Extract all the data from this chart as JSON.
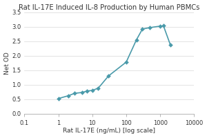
{
  "title": "Rat IL-17E Induced IL-8 Production by Human PBMCs",
  "xlabel": "Rat IL-17E (ng/mL) [log scale]",
  "ylabel": "Net OD",
  "x_data": [
    1,
    2,
    3,
    5,
    7,
    10,
    15,
    30,
    100,
    200,
    300,
    500,
    1000,
    1250,
    2000
  ],
  "y_data": [
    0.52,
    0.62,
    0.7,
    0.73,
    0.78,
    0.8,
    0.88,
    1.3,
    1.78,
    2.55,
    2.92,
    2.97,
    3.02,
    3.03,
    2.37
  ],
  "line_color": "#4a9aaa",
  "marker_color": "#4a9aaa",
  "marker": "D",
  "markersize": 3,
  "linewidth": 1.2,
  "xlim": [
    0.1,
    10000
  ],
  "ylim": [
    0,
    3.5
  ],
  "yticks": [
    0,
    0.5,
    1.0,
    1.5,
    2.0,
    2.5,
    3.0,
    3.5
  ],
  "xtick_vals": [
    0.1,
    1,
    10,
    100,
    1000,
    10000
  ],
  "bg_color": "#ffffff",
  "grid_color": "#d8d8d8",
  "title_fontsize": 7.2,
  "label_fontsize": 6.5,
  "tick_fontsize": 6.0
}
